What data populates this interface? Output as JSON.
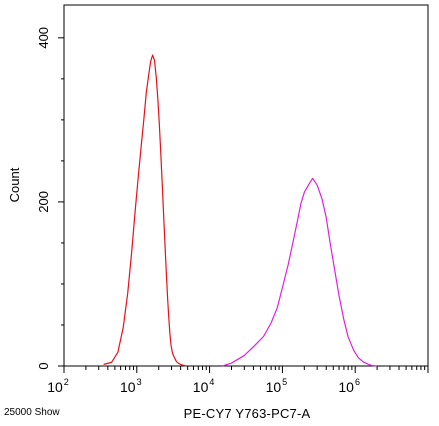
{
  "chart_data": {
    "type": "line",
    "title": "",
    "xlabel": "PE-CY7 Y763-PC7-A",
    "ylabel": "Count",
    "x_scale": "log",
    "xlim": [
      100,
      10000000
    ],
    "ylim": [
      0,
      440
    ],
    "x_ticks": [
      {
        "base": "10",
        "exp": "2"
      },
      {
        "base": "10",
        "exp": "3"
      },
      {
        "base": "10",
        "exp": "4"
      },
      {
        "base": "10",
        "exp": "5"
      },
      {
        "base": "10",
        "exp": "6"
      }
    ],
    "y_ticks": [
      {
        "value": 0,
        "label": "0"
      },
      {
        "value": 200,
        "label": "200"
      },
      {
        "value": 400,
        "label": "400"
      }
    ],
    "grid": false,
    "corner_note": "25000 Show",
    "series": [
      {
        "color": "#e8101a",
        "x": [
          350,
          450,
          550,
          650,
          750,
          850,
          950,
          1050,
          1150,
          1250,
          1350,
          1450,
          1550,
          1650,
          1750,
          1850,
          1950,
          2050,
          2150,
          2250,
          2350,
          2450,
          2550,
          2650,
          2750,
          2850,
          2950,
          3100,
          3300,
          3500,
          3800,
          4200,
          4800
        ],
        "y": [
          2,
          5,
          18,
          48,
          90,
          140,
          190,
          232,
          268,
          300,
          332,
          352,
          370,
          378,
          372,
          352,
          325,
          292,
          255,
          218,
          180,
          145,
          112,
          82,
          58,
          38,
          24,
          14,
          9,
          5,
          3,
          2,
          0
        ]
      },
      {
        "color": "#e020e0",
        "x": [
          15000,
          20000,
          30000,
          40000,
          55000,
          70000,
          85000,
          100000,
          120000,
          140000,
          160000,
          180000,
          200000,
          230000,
          260000,
          300000,
          350000,
          400000,
          450000,
          520000,
          600000,
          700000,
          800000,
          950000,
          1100000,
          1300000,
          1500000,
          1700000,
          2000000
        ],
        "y": [
          0,
          5,
          14,
          24,
          36,
          52,
          70,
          94,
          122,
          150,
          175,
          198,
          212,
          222,
          230,
          222,
          205,
          182,
          152,
          118,
          85,
          55,
          34,
          18,
          9,
          4,
          2,
          1,
          0
        ]
      }
    ]
  }
}
